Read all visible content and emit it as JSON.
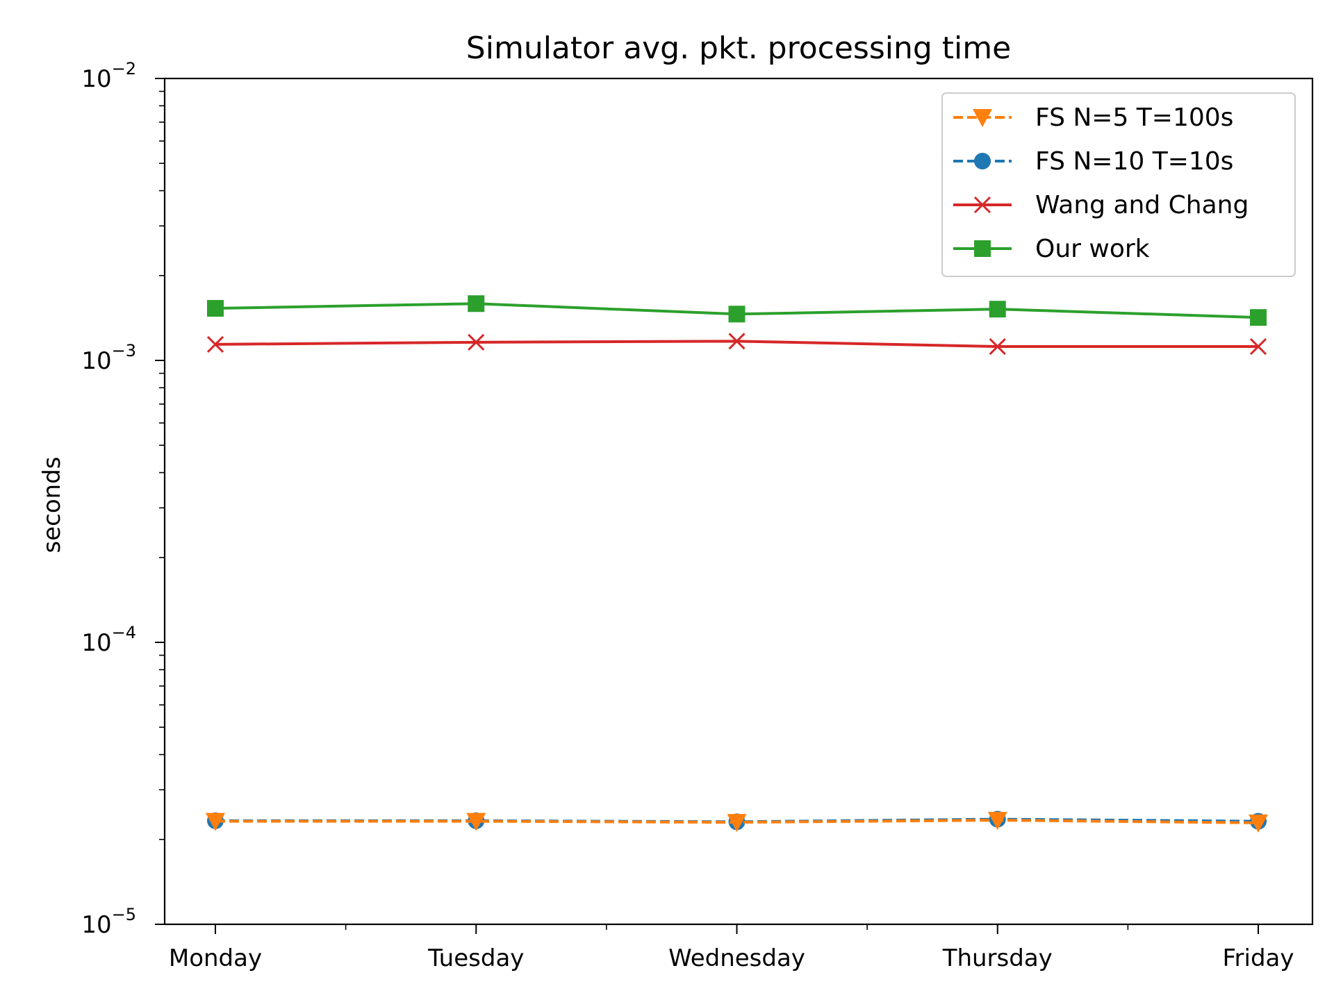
{
  "chart_data": {
    "type": "line",
    "title": "Simulator avg. pkt. processing time",
    "xlabel": "",
    "ylabel": "seconds",
    "yscale": "log",
    "ylim": [
      1e-05,
      0.01
    ],
    "categories": [
      "Monday",
      "Tuesday",
      "Wednesday",
      "Thursday",
      "Friday"
    ],
    "y_ticks": [
      {
        "value": 0.01,
        "base": "10",
        "exp": "−2"
      },
      {
        "value": 0.001,
        "base": "10",
        "exp": "−3"
      },
      {
        "value": 0.0001,
        "base": "10",
        "exp": "−4"
      },
      {
        "value": 1e-05,
        "base": "10",
        "exp": "−5"
      }
    ],
    "grid": false,
    "legend_position": "top-right",
    "series": [
      {
        "name": "FS N=5 T=100s",
        "color": "#ff7f0e",
        "marker": "triangle-down",
        "linestyle": "dashed",
        "values": [
          2.32e-05,
          2.32e-05,
          2.3e-05,
          2.34e-05,
          2.29e-05
        ]
      },
      {
        "name": "FS N=10 T=10s",
        "color": "#1f77b4",
        "marker": "circle",
        "linestyle": "dashed",
        "values": [
          2.33e-05,
          2.33e-05,
          2.31e-05,
          2.36e-05,
          2.32e-05
        ]
      },
      {
        "name": "Wang and Chang",
        "color": "#d62728",
        "marker": "x",
        "linestyle": "solid",
        "values": [
          0.00114,
          0.00116,
          0.00117,
          0.00112,
          0.00112
        ]
      },
      {
        "name": "Our work",
        "color": "#2ca02c",
        "marker": "square",
        "linestyle": "solid",
        "values": [
          0.00153,
          0.00159,
          0.00146,
          0.00152,
          0.00142
        ]
      }
    ]
  }
}
